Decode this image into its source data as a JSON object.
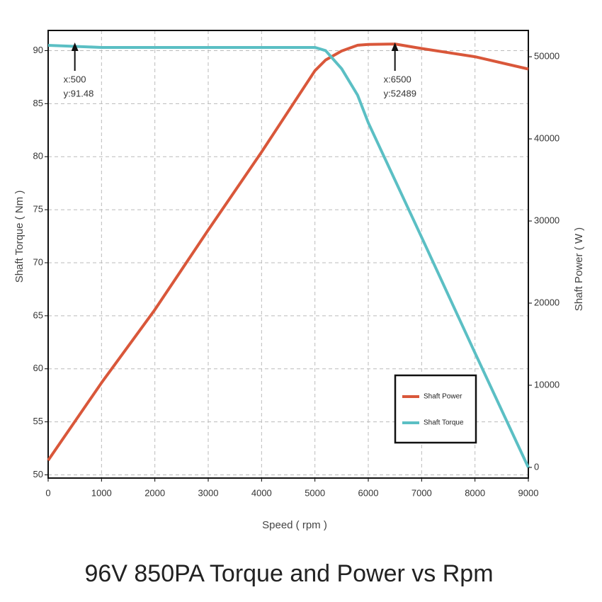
{
  "chart_data": {
    "type": "line",
    "title": "96V 850PA Torque and Power vs Rpm",
    "x_label": "Speed ( rpm )",
    "y_label": "Shaft Torque ( Nm )",
    "y2_label": "Shaft Power ( W )",
    "x": [
      0,
      1000,
      2000,
      3000,
      4000,
      5000,
      5200,
      5500,
      5800,
      6000,
      6500,
      7000,
      8000,
      9000
    ],
    "series": [
      {
        "name": "Shaft Power",
        "color": "#d9573a",
        "axis": "y2",
        "values": [
          860,
          10300,
          19200,
          28900,
          38400,
          48300,
          49600,
          50700,
          51400,
          51500,
          51550,
          51000,
          50000,
          48500
        ]
      },
      {
        "name": "Shaft Torque",
        "color": "#5bbfc4",
        "axis": "y",
        "values": [
          90.5,
          90.3,
          90.3,
          90.3,
          90.3,
          90.3,
          90.0,
          88.3,
          85.8,
          83.2,
          77.8,
          72.4,
          61.5,
          50.7
        ]
      }
    ],
    "xlim": [
      0,
      9000
    ],
    "xticks": [
      0,
      1000,
      2000,
      3000,
      4000,
      5000,
      6000,
      7000,
      8000,
      9000
    ],
    "ylim": [
      49.7,
      91.9
    ],
    "yticks": [
      50,
      55,
      60,
      65,
      70,
      75,
      80,
      85,
      90
    ],
    "y2lim": [
      -1300,
      53200
    ],
    "y2ticks": [
      0,
      10000,
      20000,
      30000,
      40000,
      50000
    ],
    "grid": true,
    "legend": "lower right",
    "annotations": [
      {
        "x": 500,
        "lines": [
          "x:500",
          "y:91.48"
        ]
      },
      {
        "x": 6500,
        "lines": [
          "x:6500",
          "y:52489"
        ]
      }
    ]
  }
}
